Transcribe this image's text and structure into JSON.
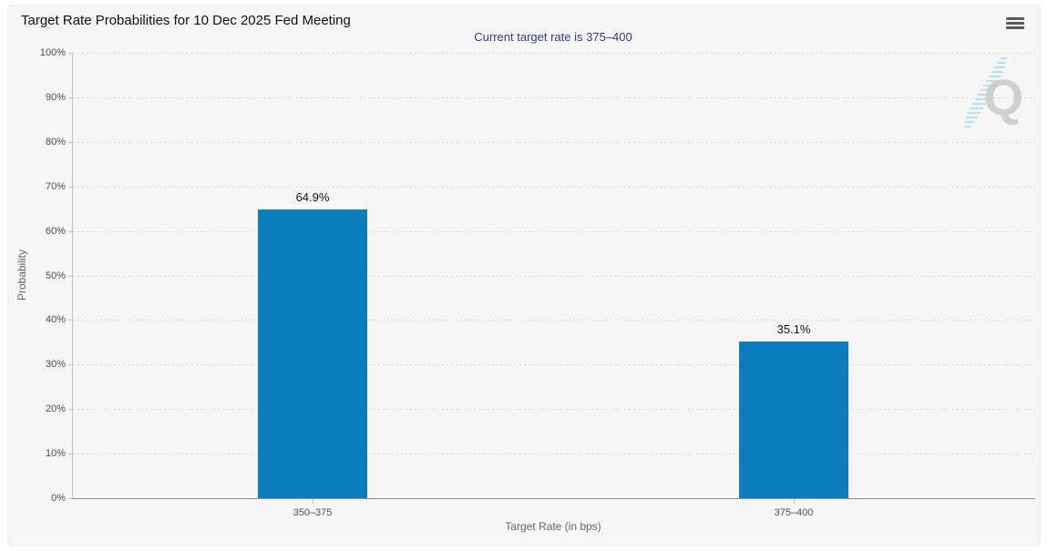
{
  "chart_data": {
    "type": "bar",
    "title": "Target Rate Probabilities for 10 Dec 2025 Fed Meeting",
    "subtitle": "Current target rate is 375–400",
    "categories": [
      "350–375",
      "375–400"
    ],
    "values": [
      64.9,
      35.1
    ],
    "value_labels": [
      "64.9%",
      "35.1%"
    ],
    "xlabel": "Target Rate (in bps)",
    "ylabel": "Probability",
    "ylim": [
      0,
      100
    ],
    "ytick_step": 10,
    "ytick_labels": [
      "0%",
      "10%",
      "20%",
      "30%",
      "40%",
      "50%",
      "60%",
      "70%",
      "80%",
      "90%",
      "100%"
    ],
    "grid": "horizontal-dotted",
    "legend": "none",
    "bar_color": "#0b7dbd"
  },
  "menu": {
    "icon": "hamburger-icon"
  },
  "watermark": {
    "letter": "Q"
  },
  "colors": {
    "page_bg": "#ffffff",
    "panel_bg": "#f6f6f7",
    "bar": "#0b7dbd",
    "subtitle_text": "#2f3f7f",
    "gridline": "#d2d2d2",
    "axis_line": "#c2c2c2",
    "baseline": "#8f8f8f",
    "tick_text": "#4d4d4d",
    "axis_title_text": "#666666",
    "menu_icon": "#58595b",
    "watermark_gray": "#c9c9c9",
    "watermark_blue": "#b8e2f4"
  }
}
